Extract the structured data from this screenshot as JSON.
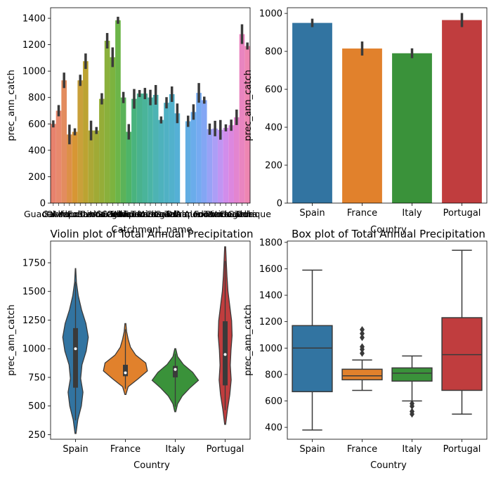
{
  "chart_data": [
    {
      "type": "bar",
      "xlabel": "Catchment_name",
      "ylabel": "prec_ann_catch",
      "ylim": [
        0,
        1480
      ],
      "yticks": [
        0,
        200,
        400,
        600,
        800,
        1000,
        1200,
        1400
      ],
      "visible_xtick_labels": [
        "Guadal",
        "Garda",
        "Ourique",
        "Almodovar",
        "Alcoutim",
        "Fonte da Telha",
        "Tavira",
        "Vodega"
      ],
      "values": [
        600,
        700,
        930,
        520,
        540,
        930,
        1075,
        550,
        550,
        790,
        1230,
        1105,
        1385,
        800,
        540,
        790,
        830,
        830,
        800,
        820,
        630,
        760,
        825,
        680,
        null,
        620,
        690,
        835,
        780,
        560,
        565,
        555,
        570,
        590,
        650,
        1280,
        1190
      ],
      "bar_colors": [
        "#e8826d",
        "#e8896d",
        "#e38c5f",
        "#dd9047",
        "#d79634",
        "#c9a03a",
        "#bca332",
        "#aca836",
        "#a0aa35",
        "#95ad38",
        "#8ab03c",
        "#7cb33f",
        "#6cb549",
        "#5bb359",
        "#4eb468",
        "#49b37e",
        "#49b28e",
        "#4ab49a",
        "#4bb4a6",
        "#4db3b3",
        "#4eb2bd",
        "#50b1c4",
        "#52b1cc",
        "#55b0d6",
        "#5ab1dd",
        "#62aee3",
        "#6aaceb",
        "#75aaf1",
        "#83a6f4",
        "#98a2f6",
        "#ac9ef6",
        "#c095f3",
        "#d18deb",
        "#dc87df",
        "#e385d0",
        "#e985c0",
        "#ee86b2"
      ]
    },
    {
      "type": "bar",
      "categories": [
        "Spain",
        "France",
        "Italy",
        "Portugal"
      ],
      "values": [
        950,
        815,
        790,
        965
      ],
      "xlabel": "Country",
      "ylabel": "prec_ann_catch",
      "ylim": [
        0,
        1030
      ],
      "yticks": [
        0,
        200,
        400,
        600,
        800,
        1000
      ],
      "colors": [
        "#3274a1",
        "#e1812c",
        "#3a923a",
        "#c03d3e"
      ]
    },
    {
      "type": "violin",
      "title": "Violin plot of Total Annual Precipitation",
      "categories": [
        "Spain",
        "France",
        "Italy",
        "Portugal"
      ],
      "xlabel": "Country",
      "ylabel": "prec_ann_catch",
      "ylim": [
        210,
        1940
      ],
      "yticks": [
        250,
        500,
        750,
        1000,
        1250,
        1500,
        1750
      ],
      "ranges": [
        [
          260,
          1700
        ],
        [
          600,
          1220
        ],
        [
          450,
          1000
        ],
        [
          340,
          1890
        ]
      ],
      "medians": [
        1000,
        790,
        820,
        950
      ],
      "quartiles": [
        [
          660,
          1180
        ],
        [
          760,
          860
        ],
        [
          750,
          850
        ],
        [
          680,
          1240
        ]
      ],
      "colors": [
        "#3274a1",
        "#e1812c",
        "#3a923a",
        "#c03d3e"
      ]
    },
    {
      "type": "box",
      "title": "Box plot of Total Annual Precipitation",
      "categories": [
        "Spain",
        "France",
        "Italy",
        "Portugal"
      ],
      "xlabel": "Country",
      "ylabel": "prec_ann_catch",
      "ylim": [
        310,
        1810
      ],
      "yticks": [
        400,
        600,
        800,
        1000,
        1200,
        1400,
        1600,
        1800
      ],
      "boxes": [
        {
          "whisker_low": 380,
          "q1": 670,
          "median": 1000,
          "q3": 1170,
          "whisker_high": 1590,
          "outliers": []
        },
        {
          "whisker_low": 680,
          "q1": 760,
          "median": 790,
          "q3": 840,
          "whisker_high": 910,
          "outliers": [
            960,
            990,
            1010,
            1080,
            1110,
            1140
          ]
        },
        {
          "whisker_low": 600,
          "q1": 750,
          "median": 810,
          "q3": 850,
          "whisker_high": 940,
          "outliers": [
            500,
            520,
            560,
            580
          ]
        },
        {
          "whisker_low": 500,
          "q1": 680,
          "median": 950,
          "q3": 1230,
          "whisker_high": 1740,
          "outliers": []
        }
      ],
      "colors": [
        "#3274a1",
        "#e1812c",
        "#3a923a",
        "#c03d3e"
      ]
    }
  ]
}
